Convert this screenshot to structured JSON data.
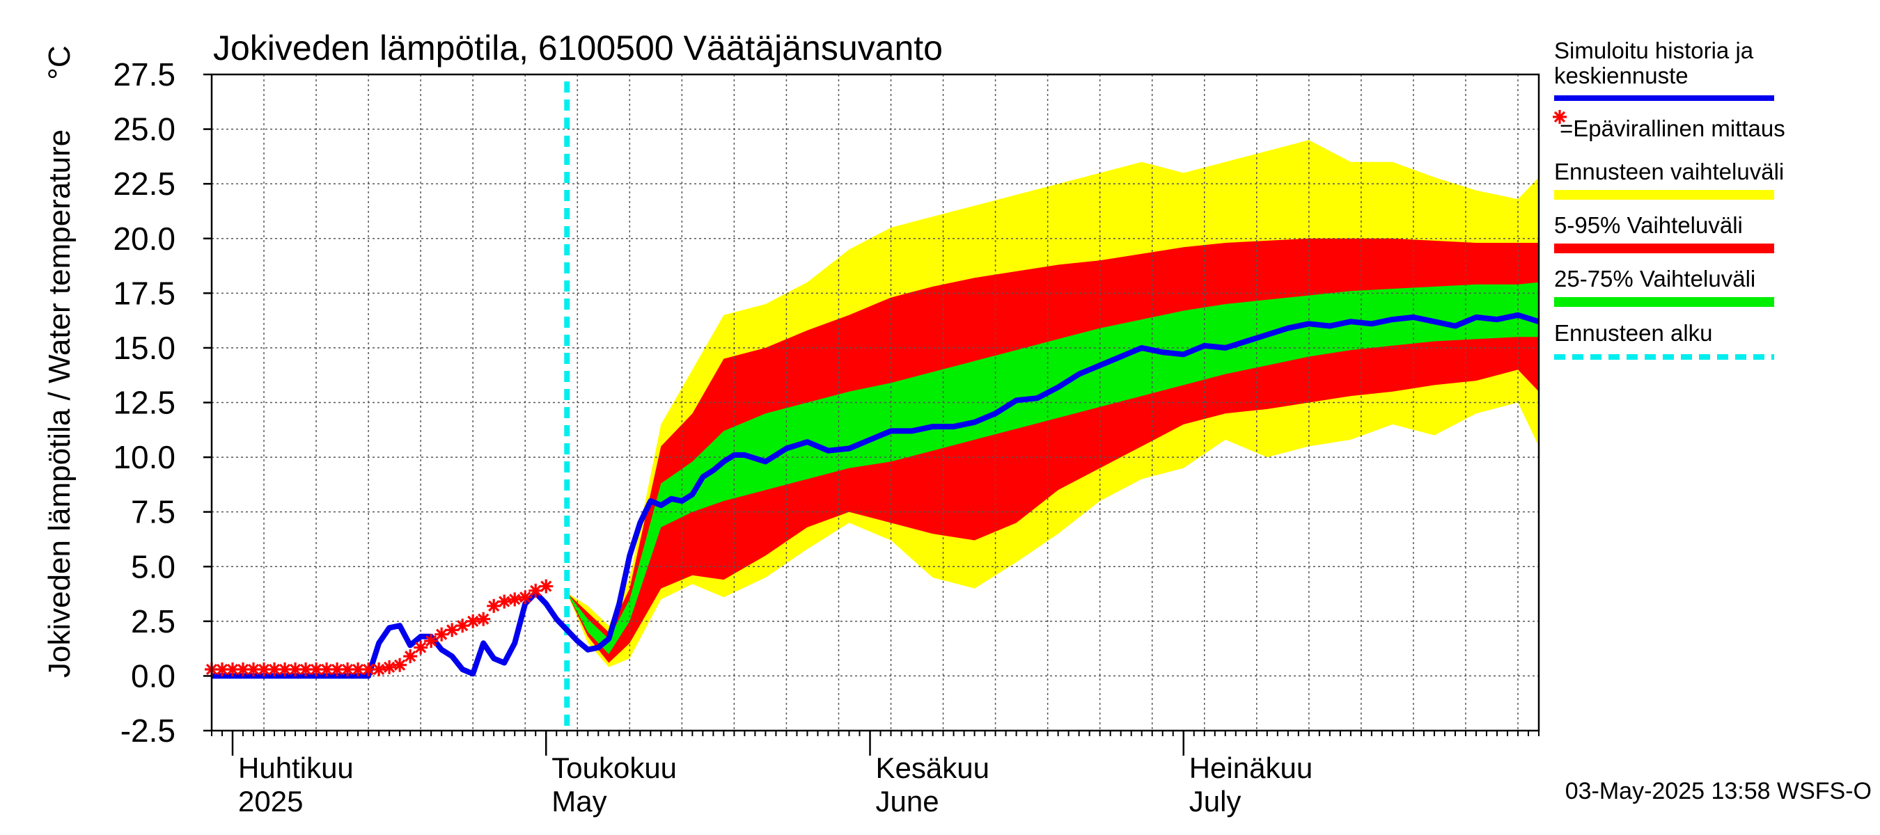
{
  "chart_data": {
    "type": "area",
    "title": "Jokiveden lämpötila, 6100500 Väätäjänsuvanto",
    "ylabel": "Jokiveden lämpötila / Water temperature",
    "yunit": "°C",
    "ylim": [
      -2.5,
      27.5
    ],
    "yticks": [
      "27.5",
      "25.0",
      "22.5",
      "20.0",
      "17.5",
      "15.0",
      "12.5",
      "10.0",
      "7.5",
      "5.0",
      "2.5",
      "0.0",
      "-2.5"
    ],
    "xlim": [
      "2025-03-30",
      "2025-08-04"
    ],
    "grid": true,
    "month_labels": [
      {
        "fi": "Huhtikuu",
        "en": "2025",
        "date": "2025-04-01"
      },
      {
        "fi": "Toukokuu",
        "en": "May",
        "date": "2025-05-01"
      },
      {
        "fi": "Kesäkuu",
        "en": "June",
        "date": "2025-06-01"
      },
      {
        "fi": "Heinäkuu",
        "en": "July",
        "date": "2025-07-01"
      }
    ],
    "forecast_start": "2025-05-03",
    "legend": [
      {
        "label": "Simuloitu historia ja",
        "label2": "keskiennuste",
        "color": "#0000ee",
        "style": "line"
      },
      {
        "label": "=Epävirallinen mittaus",
        "color": "#ff0000",
        "style": "star"
      },
      {
        "label": "Ennusteen vaihteluväli",
        "color": "#ffff00",
        "style": "band"
      },
      {
        "label": "5-95% Vaihteluväli",
        "color": "#ff0000",
        "style": "band"
      },
      {
        "label": "25-75% Vaihteluväli",
        "color": "#00ee00",
        "style": "band"
      },
      {
        "label": "Ennusteen alku",
        "color": "#00eeee",
        "style": "dashed"
      }
    ],
    "legend_position": "right",
    "footer": "03-May-2025 13:58 WSFS-O",
    "bands": {
      "dates": [
        "2025-05-03",
        "2025-05-05",
        "2025-05-07",
        "2025-05-09",
        "2025-05-12",
        "2025-05-15",
        "2025-05-18",
        "2025-05-22",
        "2025-05-26",
        "2025-05-30",
        "2025-06-03",
        "2025-06-07",
        "2025-06-11",
        "2025-06-15",
        "2025-06-19",
        "2025-06-23",
        "2025-06-27",
        "2025-07-01",
        "2025-07-05",
        "2025-07-09",
        "2025-07-13",
        "2025-07-17",
        "2025-07-21",
        "2025-07-25",
        "2025-07-29",
        "2025-08-02",
        "2025-08-04"
      ],
      "full_low": [
        3.8,
        1.5,
        0.4,
        0.8,
        3.5,
        4.2,
        3.6,
        4.5,
        5.8,
        7.0,
        6.2,
        4.5,
        4.0,
        5.2,
        6.5,
        8.0,
        9.0,
        9.5,
        10.8,
        10.0,
        10.5,
        10.8,
        11.5,
        11.0,
        12.0,
        12.5,
        10.5
      ],
      "p5": [
        3.8,
        1.8,
        0.6,
        1.5,
        4.0,
        4.6,
        4.4,
        5.5,
        6.8,
        7.5,
        7.0,
        6.5,
        6.2,
        7.0,
        8.5,
        9.5,
        10.5,
        11.5,
        12.0,
        12.2,
        12.5,
        12.8,
        13.0,
        13.3,
        13.5,
        14.0,
        13.0
      ],
      "p25": [
        3.8,
        2.0,
        1.0,
        2.5,
        6.8,
        7.5,
        8.0,
        8.5,
        9.0,
        9.5,
        9.8,
        10.3,
        10.8,
        11.3,
        11.8,
        12.3,
        12.8,
        13.3,
        13.8,
        14.2,
        14.6,
        14.9,
        15.1,
        15.3,
        15.4,
        15.5,
        15.5
      ],
      "p75": [
        3.8,
        2.6,
        1.7,
        3.5,
        8.8,
        9.8,
        11.2,
        12.0,
        12.5,
        13.0,
        13.4,
        13.9,
        14.4,
        14.9,
        15.4,
        15.9,
        16.3,
        16.7,
        17.0,
        17.2,
        17.4,
        17.6,
        17.7,
        17.8,
        17.9,
        17.9,
        18.0
      ],
      "p95": [
        3.8,
        2.9,
        2.0,
        4.0,
        10.5,
        12.0,
        14.5,
        15.0,
        15.8,
        16.5,
        17.3,
        17.8,
        18.2,
        18.5,
        18.8,
        19.0,
        19.3,
        19.6,
        19.8,
        19.9,
        20.0,
        20.0,
        20.0,
        19.9,
        19.8,
        19.8,
        19.8
      ],
      "full_high": [
        3.8,
        3.2,
        2.3,
        4.5,
        11.5,
        14.0,
        16.5,
        17.0,
        18.0,
        19.5,
        20.5,
        21.0,
        21.5,
        22.0,
        22.5,
        23.0,
        23.5,
        23.0,
        23.5,
        24.0,
        24.5,
        23.5,
        23.5,
        22.8,
        22.2,
        21.8,
        22.8
      ]
    },
    "series": [
      {
        "name": "Simuloitu historia ja keskiennuste",
        "x": [
          "2025-03-30",
          "2025-04-08",
          "2025-04-14",
          "2025-04-15",
          "2025-04-16",
          "2025-04-17",
          "2025-04-18",
          "2025-04-19",
          "2025-04-20",
          "2025-04-21",
          "2025-04-22",
          "2025-04-23",
          "2025-04-24",
          "2025-04-25",
          "2025-04-26",
          "2025-04-27",
          "2025-04-28",
          "2025-04-29",
          "2025-04-30",
          "2025-05-01",
          "2025-05-02",
          "2025-05-03",
          "2025-05-04",
          "2025-05-05",
          "2025-05-06",
          "2025-05-07",
          "2025-05-08",
          "2025-05-09",
          "2025-05-10",
          "2025-05-11",
          "2025-05-12",
          "2025-05-13",
          "2025-05-14",
          "2025-05-15",
          "2025-05-16",
          "2025-05-17",
          "2025-05-18",
          "2025-05-19",
          "2025-05-20",
          "2025-05-22",
          "2025-05-24",
          "2025-05-26",
          "2025-05-28",
          "2025-05-30",
          "2025-06-01",
          "2025-06-03",
          "2025-06-05",
          "2025-06-07",
          "2025-06-09",
          "2025-06-11",
          "2025-06-13",
          "2025-06-15",
          "2025-06-17",
          "2025-06-19",
          "2025-06-21",
          "2025-06-23",
          "2025-06-25",
          "2025-06-27",
          "2025-06-29",
          "2025-07-01",
          "2025-07-03",
          "2025-07-05",
          "2025-07-07",
          "2025-07-09",
          "2025-07-11",
          "2025-07-13",
          "2025-07-15",
          "2025-07-17",
          "2025-07-19",
          "2025-07-21",
          "2025-07-23",
          "2025-07-25",
          "2025-07-27",
          "2025-07-29",
          "2025-07-31",
          "2025-08-02",
          "2025-08-04"
        ],
        "y": [
          0.0,
          0.0,
          0.0,
          1.5,
          2.2,
          2.3,
          1.4,
          1.8,
          1.8,
          1.2,
          0.9,
          0.3,
          0.1,
          1.5,
          0.8,
          0.6,
          1.5,
          3.3,
          3.8,
          3.3,
          2.6,
          2.1,
          1.6,
          1.2,
          1.3,
          1.7,
          3.3,
          5.5,
          7.0,
          8.0,
          7.8,
          8.1,
          8.0,
          8.3,
          9.1,
          9.4,
          9.8,
          10.1,
          10.1,
          9.8,
          10.4,
          10.7,
          10.3,
          10.4,
          10.8,
          11.2,
          11.2,
          11.4,
          11.4,
          11.6,
          12.0,
          12.6,
          12.7,
          13.2,
          13.8,
          14.2,
          14.6,
          15.0,
          14.8,
          14.7,
          15.1,
          15.0,
          15.3,
          15.6,
          15.9,
          16.1,
          16.0,
          16.2,
          16.1,
          16.3,
          16.4,
          16.2,
          16.0,
          16.4,
          16.3,
          16.5,
          16.2
        ]
      },
      {
        "name": "Epävirallinen mittaus",
        "x": [
          "2025-03-30",
          "2025-03-31",
          "2025-04-01",
          "2025-04-02",
          "2025-04-03",
          "2025-04-04",
          "2025-04-05",
          "2025-04-06",
          "2025-04-07",
          "2025-04-08",
          "2025-04-09",
          "2025-04-10",
          "2025-04-11",
          "2025-04-12",
          "2025-04-13",
          "2025-04-14",
          "2025-04-15",
          "2025-04-16",
          "2025-04-17",
          "2025-04-18",
          "2025-04-19",
          "2025-04-20",
          "2025-04-21",
          "2025-04-22",
          "2025-04-23",
          "2025-04-24",
          "2025-04-25",
          "2025-04-26",
          "2025-04-27",
          "2025-04-28",
          "2025-04-29",
          "2025-04-30",
          "2025-05-01"
        ],
        "y": [
          0.3,
          0.3,
          0.3,
          0.3,
          0.3,
          0.3,
          0.3,
          0.3,
          0.3,
          0.3,
          0.3,
          0.3,
          0.3,
          0.3,
          0.3,
          0.3,
          0.3,
          0.4,
          0.5,
          0.9,
          1.3,
          1.6,
          1.9,
          2.1,
          2.3,
          2.5,
          2.6,
          3.2,
          3.4,
          3.5,
          3.6,
          3.9,
          4.1
        ]
      }
    ]
  }
}
